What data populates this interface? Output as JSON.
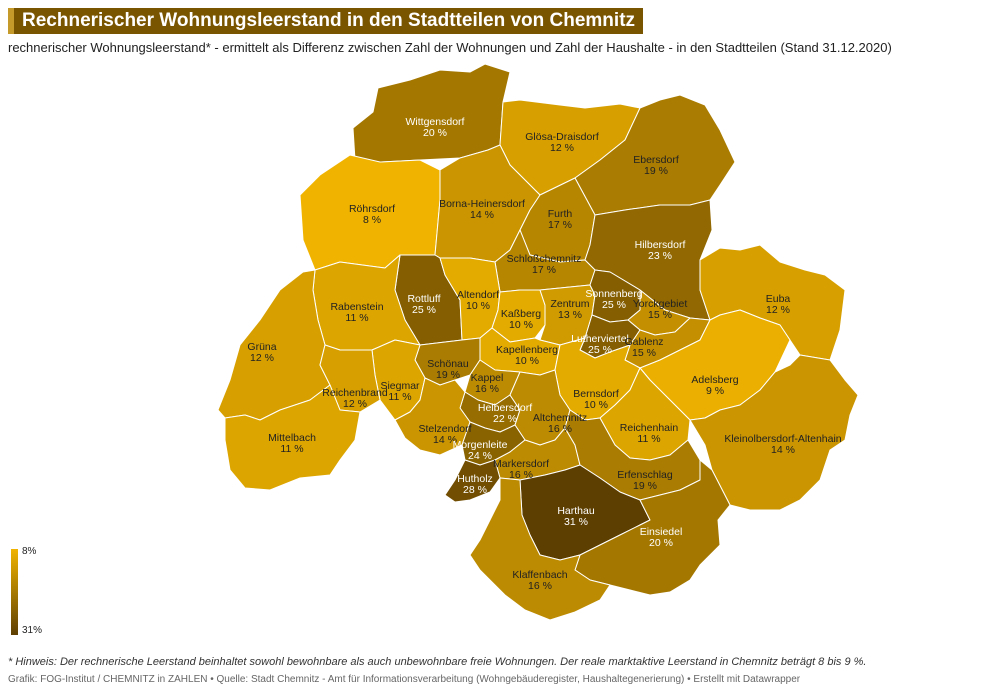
{
  "title": "Rechnerischer Wohnungsleerstand in den Stadtteilen von Chemnitz",
  "subtitle": "rechnerischer Wohnungsleerstand* - ermittelt als Differenz zwischen Zahl der Wohnungen und Zahl der Haushalte - in den Stadtteilen (Stand 31.12.2020)",
  "legend": {
    "min_label": "8%",
    "max_label": "31%",
    "color_low": "#f0b400",
    "color_high": "#5e3f02"
  },
  "footnote": "* Hinweis: Der rechnerische Leerstand beinhaltet sowohl bewohnbare als auch unbewohnbare freie Wohnungen. Der reale marktaktive Leerstand in Chemnitz beträgt 8 bis 9 %.",
  "credit": "Grafik: FOG-Institut / CHEMNITZ in ZAHLEN • Quelle: Stadt Chemnitz - Amt für Informationsverarbeitung (Wohngebäuderegister, Haushaltegenerierung) • Erstellt mit Datawrapper",
  "districts": [
    {
      "name": "Wittgensdorf",
      "value_label": "20 %",
      "value": 20
    },
    {
      "name": "Glösa-Draisdorf",
      "value_label": "12 %",
      "value": 12
    },
    {
      "name": "Ebersdorf",
      "value_label": "19 %",
      "value": 19
    },
    {
      "name": "Röhrsdorf",
      "value_label": "8 %",
      "value": 8
    },
    {
      "name": "Borna-Heinersdorf",
      "value_label": "14 %",
      "value": 14
    },
    {
      "name": "Furth",
      "value_label": "17 %",
      "value": 17
    },
    {
      "name": "Hilbersdorf",
      "value_label": "23 %",
      "value": 23
    },
    {
      "name": "Schloßchemnitz",
      "value_label": "17 %",
      "value": 17
    },
    {
      "name": "Rottluff",
      "value_label": "25 %",
      "value": 25
    },
    {
      "name": "Altendorf",
      "value_label": "10 %",
      "value": 10
    },
    {
      "name": "Rabenstein",
      "value_label": "11 %",
      "value": 11
    },
    {
      "name": "Kaßberg",
      "value_label": "10 %",
      "value": 10
    },
    {
      "name": "Zentrum",
      "value_label": "13 %",
      "value": 13
    },
    {
      "name": "Sonnenberg",
      "value_label": "25 %",
      "value": 25
    },
    {
      "name": "Yorckgebiet",
      "value_label": "15 %",
      "value": 15
    },
    {
      "name": "Euba",
      "value_label": "12 %",
      "value": 12
    },
    {
      "name": "Lutherviertel",
      "value_label": "25 %",
      "value": 25
    },
    {
      "name": "Gablenz",
      "value_label": "15 %",
      "value": 15
    },
    {
      "name": "Grüna",
      "value_label": "12 %",
      "value": 12
    },
    {
      "name": "Kapellenberg",
      "value_label": "10 %",
      "value": 10
    },
    {
      "name": "Schönau",
      "value_label": "19 %",
      "value": 19
    },
    {
      "name": "Kappel",
      "value_label": "16 %",
      "value": 16
    },
    {
      "name": "Adelsberg",
      "value_label": "9 %",
      "value": 9
    },
    {
      "name": "Siegmar",
      "value_label": "11 %",
      "value": 11
    },
    {
      "name": "Reichenbrand",
      "value_label": "12 %",
      "value": 12
    },
    {
      "name": "Bernsdorf",
      "value_label": "10 %",
      "value": 10
    },
    {
      "name": "Helbersdorf",
      "value_label": "22 %",
      "value": 22
    },
    {
      "name": "Altchemnitz",
      "value_label": "16 %",
      "value": 16
    },
    {
      "name": "Reichenhain",
      "value_label": "11 %",
      "value": 11
    },
    {
      "name": "Kleinolbersdorf-Altenhain",
      "value_label": "14 %",
      "value": 14
    },
    {
      "name": "Mittelbach",
      "value_label": "11 %",
      "value": 11
    },
    {
      "name": "Stelzendorf",
      "value_label": "14 %",
      "value": 14
    },
    {
      "name": "Morgenleite",
      "value_label": "24 %",
      "value": 24
    },
    {
      "name": "Markersdorf",
      "value_label": "16 %",
      "value": 16
    },
    {
      "name": "Erfenschlag",
      "value_label": "19 %",
      "value": 19
    },
    {
      "name": "Hutholz",
      "value_label": "28 %",
      "value": 28
    },
    {
      "name": "Harthau",
      "value_label": "31 %",
      "value": 31
    },
    {
      "name": "Einsiedel",
      "value_label": "20 %",
      "value": 20
    },
    {
      "name": "Klaffenbach",
      "value_label": "16 %",
      "value": 16
    }
  ]
}
